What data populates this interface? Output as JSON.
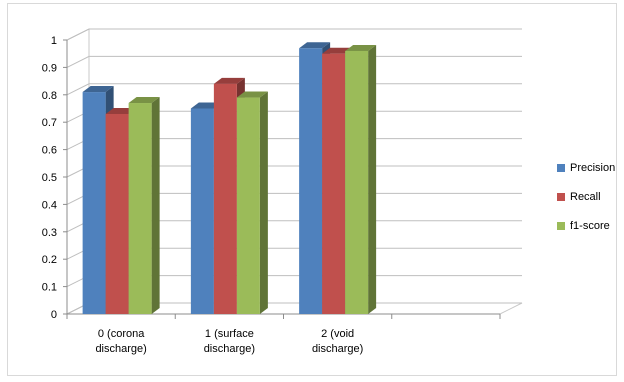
{
  "chart_data": {
    "type": "bar",
    "title": "",
    "xlabel": "",
    "ylabel": "",
    "categories": [
      [
        "0 (corona",
        "discharge)"
      ],
      [
        "1 (surface",
        "discharge)"
      ],
      [
        "2 (void",
        "discharge)"
      ]
    ],
    "series": [
      {
        "name": "Precision",
        "values": [
          0.81,
          0.75,
          0.97
        ],
        "color": "#4f81bd"
      },
      {
        "name": "Recall",
        "values": [
          0.73,
          0.84,
          0.95
        ],
        "color": "#c0504d"
      },
      {
        "name": "f1-score",
        "values": [
          0.77,
          0.79,
          0.96
        ],
        "color": "#9bbb59"
      }
    ],
    "ylim": [
      0,
      1
    ],
    "yticks": [
      "0",
      "0.1",
      "0.2",
      "0.3",
      "0.4",
      "0.5",
      "0.6",
      "0.7",
      "0.8",
      "0.9",
      "1"
    ],
    "grid": true,
    "legend": "right",
    "style": "3d-clustered-column"
  }
}
